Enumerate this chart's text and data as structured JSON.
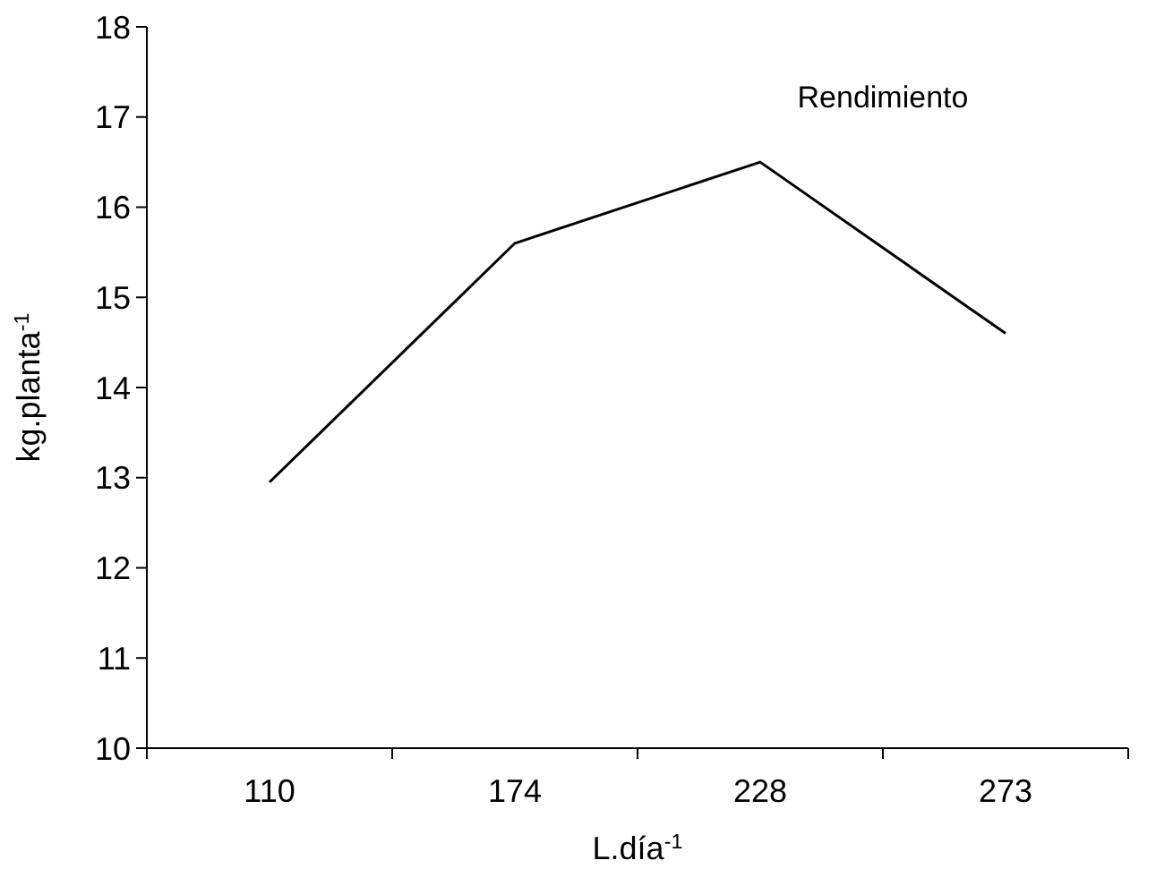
{
  "chart_data": {
    "type": "line",
    "xlabel": "L.día$^{-1}$",
    "ylabel": "kg.planta$^{-1}$",
    "categories": [
      "110",
      "174",
      "228",
      "273"
    ],
    "series": [
      {
        "name": "Rendimiento",
        "color": "#000000",
        "values": [
          12.95,
          15.6,
          16.5,
          14.6
        ]
      }
    ],
    "ylim": [
      10,
      18
    ],
    "yticks": [
      10,
      11,
      12,
      13,
      14,
      15,
      16,
      17,
      18
    ],
    "grid": false,
    "marker": "none",
    "line_style": "solid"
  }
}
